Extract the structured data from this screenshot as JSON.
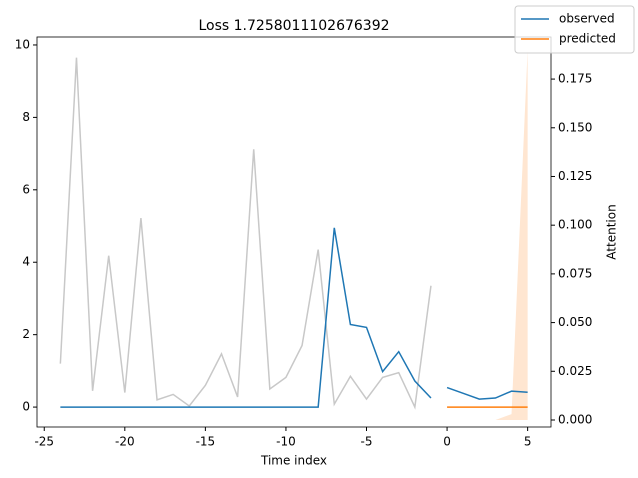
{
  "chart_data": {
    "type": "line",
    "title": "Loss 1.7258011102676392",
    "x_label": "Time index",
    "y2_label": "Attention",
    "xlim": [
      -25.45,
      6.45
    ],
    "xticks": [
      -25,
      -20,
      -15,
      -10,
      -5,
      0,
      5
    ],
    "ylim": [
      -0.55,
      10.22
    ],
    "yticks": [
      0,
      2,
      4,
      6,
      8,
      10
    ],
    "y2lim": [
      -0.0036,
      0.1966
    ],
    "y2ticks": [
      {
        "value": 0,
        "label": "0.000"
      },
      {
        "value": 0.025,
        "label": "0.025"
      },
      {
        "value": 0.05,
        "label": "0.050"
      },
      {
        "value": 0.075,
        "label": "0.075"
      },
      {
        "value": 0.1,
        "label": "0.100"
      },
      {
        "value": 0.125,
        "label": "0.125"
      },
      {
        "value": 0.15,
        "label": "0.150"
      },
      {
        "value": 0.175,
        "label": "0.175"
      }
    ],
    "background": {
      "color": "#c8c8c8",
      "x": [
        -24,
        -23,
        -22,
        -21,
        -20,
        -19,
        -18,
        -17,
        -16,
        -15,
        -14,
        -13,
        -12,
        -11,
        -10,
        -9,
        -8,
        -7,
        -6,
        -5,
        -4,
        -3,
        -2,
        -1
      ],
      "values": [
        1.2,
        9.65,
        0.45,
        4.18,
        0.4,
        5.22,
        0.2,
        0.35,
        0.03,
        0.6,
        1.47,
        0.28,
        7.12,
        0.5,
        0.82,
        1.7,
        4.35,
        0.08,
        0.85,
        0.22,
        0.82,
        0.95,
        0.0,
        3.35
      ]
    },
    "attention": {
      "color": "#ffe6d1",
      "axis": "y2",
      "x": [
        0,
        1,
        2,
        3,
        4,
        5
      ],
      "values": [
        0,
        0,
        0,
        0,
        0.003,
        0.19
      ]
    },
    "series": [
      {
        "name": "observed",
        "color": "#1f77b4",
        "segments": [
          {
            "x": [
              -24,
              -23,
              -22,
              -21,
              -20,
              -19,
              -18,
              -17,
              -16,
              -15,
              -14,
              -13,
              -12,
              -11,
              -10,
              -9,
              -8,
              -7,
              -6,
              -5,
              -4,
              -3,
              -2,
              -1
            ],
            "values": [
              0,
              0,
              0,
              0,
              0,
              0,
              0,
              0,
              0,
              0,
              0,
              0,
              0,
              0,
              0,
              0,
              0,
              4.95,
              2.28,
              2.2,
              0.98,
              1.53,
              0.72,
              0.25
            ]
          },
          {
            "x": [
              0,
              1,
              2,
              3,
              4,
              5
            ],
            "values": [
              0.54,
              0.38,
              0.22,
              0.25,
              0.44,
              0.41
            ]
          }
        ]
      },
      {
        "name": "predicted",
        "color": "#ff7f0e",
        "segments": [
          {
            "x": [
              0,
              1,
              2,
              3,
              4,
              5
            ],
            "values": [
              0,
              0,
              0,
              0,
              0,
              0
            ]
          }
        ]
      }
    ]
  }
}
